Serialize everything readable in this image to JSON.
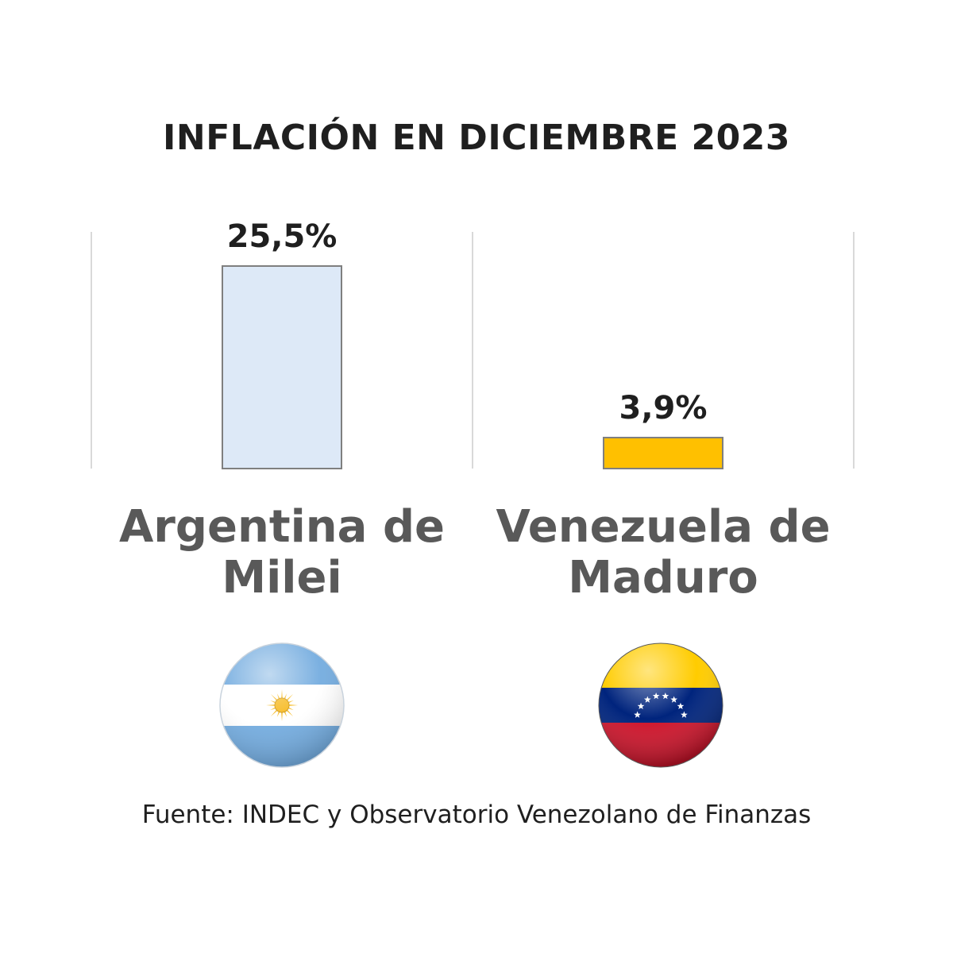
{
  "title": "INFLACIÓN EN DICIEMBRE 2023",
  "source": "Fuente: INDEC y Observatorio Venezolano de Finanzas",
  "chart_data": {
    "type": "bar",
    "categories": [
      [
        "Argentina de",
        "Milei"
      ],
      [
        "Venezuela de",
        "Maduro"
      ]
    ],
    "values": [
      25.5,
      3.9
    ],
    "data_labels": [
      "25,5%",
      "3,9%"
    ],
    "ylim": [
      0,
      25.5
    ],
    "grid": false,
    "legend": "none",
    "bar_colors": [
      "#dde9f7",
      "#ffc000"
    ],
    "bar_border_color": "#7f7f7f",
    "separator_color": "#d9d9d9"
  },
  "flags": [
    {
      "icon": "argentina-flag-icon",
      "colors": [
        "#74acdf",
        "#ffffff",
        "#f6b40e"
      ]
    },
    {
      "icon": "venezuela-flag-icon",
      "colors": [
        "#ffcc00",
        "#00247d",
        "#cf142b",
        "#ffffff"
      ]
    }
  ]
}
